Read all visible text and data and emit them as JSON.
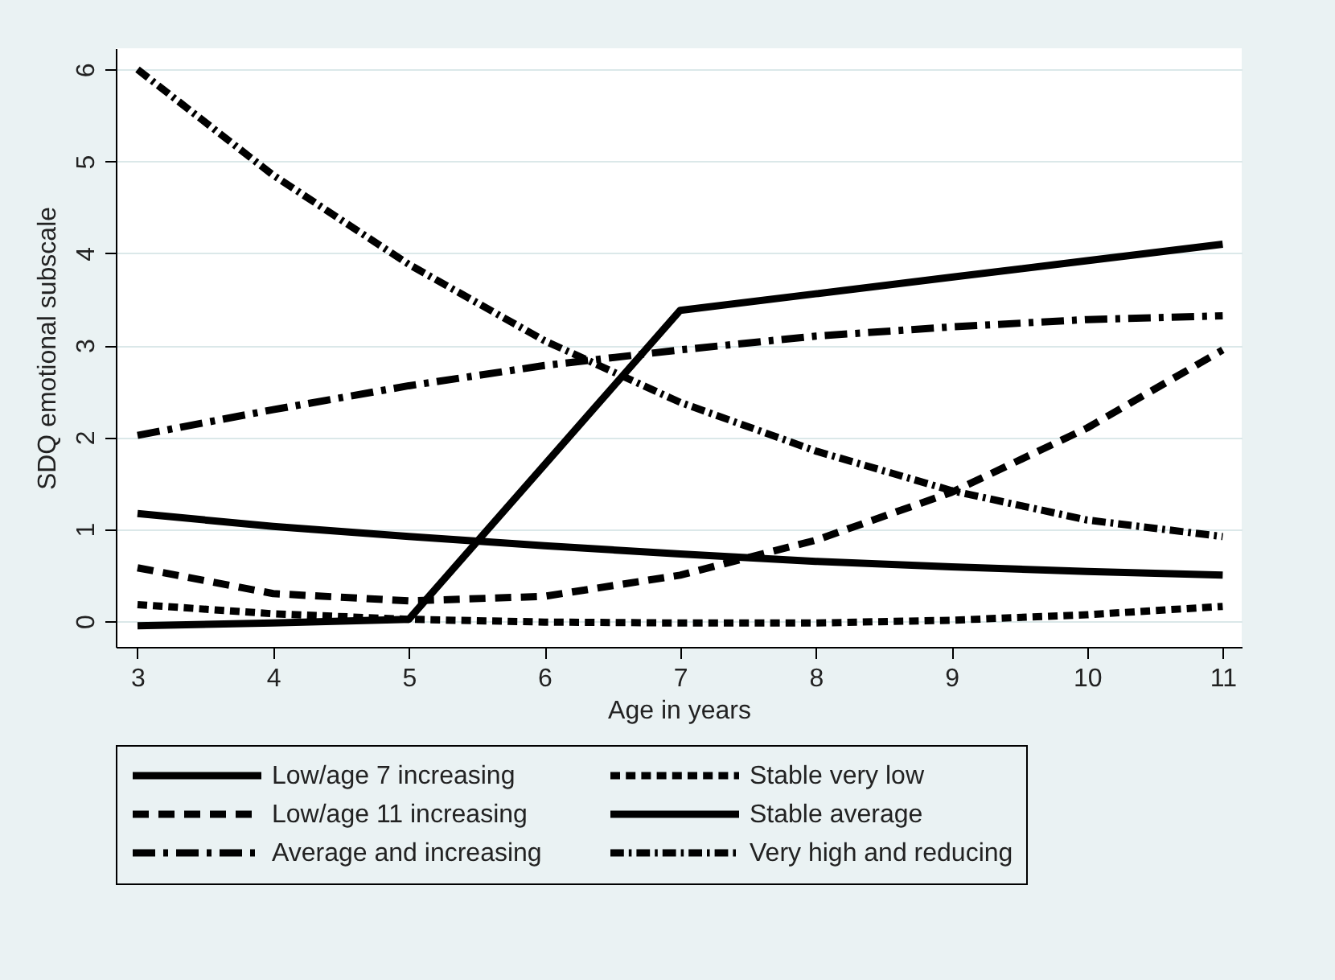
{
  "chart_data": {
    "type": "line",
    "xlabel": "Age in years",
    "ylabel": "SDQ emotional subscale",
    "x": [
      3,
      4,
      5,
      6,
      7,
      8,
      9,
      10,
      11
    ],
    "xlim": [
      2.84,
      11.14
    ],
    "xticks": [
      3,
      4,
      5,
      6,
      7,
      8,
      9,
      10,
      11
    ],
    "ylim": [
      -0.28,
      6.23
    ],
    "yticks": [
      0,
      1,
      2,
      3,
      4,
      5,
      6
    ],
    "grid": "y",
    "legend": "bottom",
    "series": [
      {
        "name": "Low/age 7 increasing",
        "color": "#000000",
        "line_style": "solid",
        "values": [
          -0.05,
          -0.02,
          0.02,
          1.7,
          3.38,
          3.56,
          3.74,
          3.92,
          4.1
        ]
      },
      {
        "name": "Low/age 11 increasing",
        "color": "#000000",
        "line_style": "dashed",
        "values": [
          0.58,
          0.3,
          0.22,
          0.27,
          0.5,
          0.88,
          1.4,
          2.1,
          2.95
        ]
      },
      {
        "name": "Average and increasing",
        "color": "#000000",
        "line_style": "dashdot",
        "values": [
          2.02,
          2.3,
          2.56,
          2.78,
          2.95,
          3.1,
          3.2,
          3.28,
          3.32
        ]
      },
      {
        "name": "Stable very low",
        "color": "#000000",
        "line_style": "dashed",
        "values": [
          0.18,
          0.08,
          0.02,
          -0.01,
          -0.02,
          -0.02,
          0.01,
          0.07,
          0.16
        ]
      },
      {
        "name": "Stable average",
        "color": "#000000",
        "line_style": "solid",
        "values": [
          1.17,
          1.03,
          0.92,
          0.82,
          0.73,
          0.65,
          0.59,
          0.54,
          0.5
        ]
      },
      {
        "name": "Very high and reducing",
        "color": "#000000",
        "line_style": "dashdot",
        "values": [
          6.0,
          4.85,
          3.88,
          3.05,
          2.38,
          1.85,
          1.42,
          1.1,
          0.92
        ]
      }
    ]
  }
}
